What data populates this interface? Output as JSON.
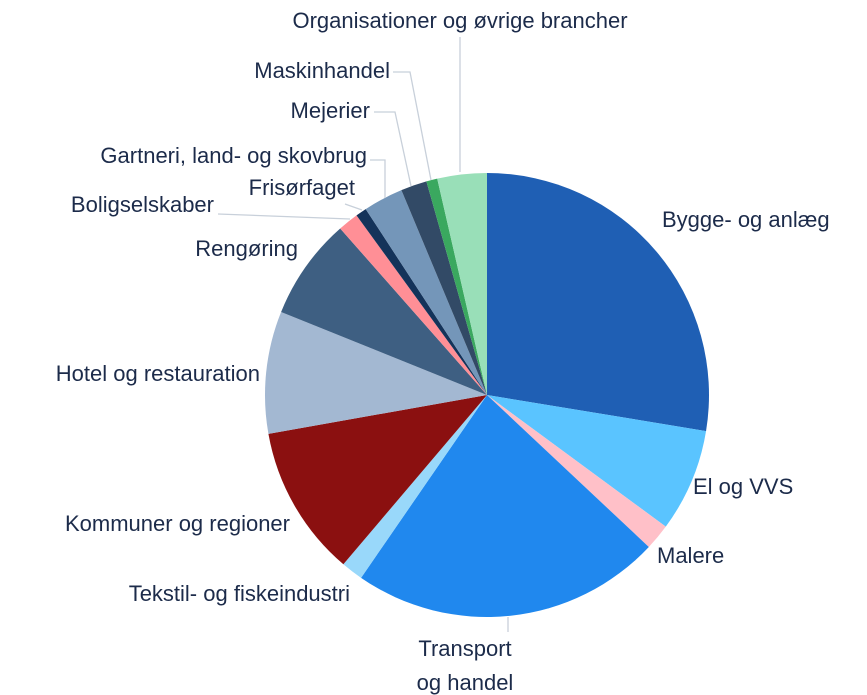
{
  "chart_data": {
    "type": "pie",
    "categories": [
      "Bygge- og anlæg",
      "El og VVS",
      "Malere",
      "Transport og handel",
      "Tekstil- og fiskeindustri",
      "Kommuner og regioner",
      "Hotel og restauration",
      "Rengøring",
      "Boligselskaber",
      "Frisørfaget",
      "Gartneri, land- og skovbrug",
      "Mejerier",
      "Maskinhandel",
      "Organisationer og øvrige brancher"
    ],
    "values": [
      27.6,
      7.5,
      1.9,
      22.6,
      1.6,
      11.0,
      8.9,
      7.4,
      1.5,
      0.8,
      2.9,
      1.9,
      0.8,
      3.6
    ],
    "colors": [
      "#1f5fb4",
      "#5ac4ff",
      "#ffc0c8",
      "#2088ee",
      "#99d8fa",
      "#8b1010",
      "#a3b8d2",
      "#3e5f82",
      "#ff8f96",
      "#14335a",
      "#7496b9",
      "#324a66",
      "#3aa85f",
      "#99dfb8"
    ]
  }
}
